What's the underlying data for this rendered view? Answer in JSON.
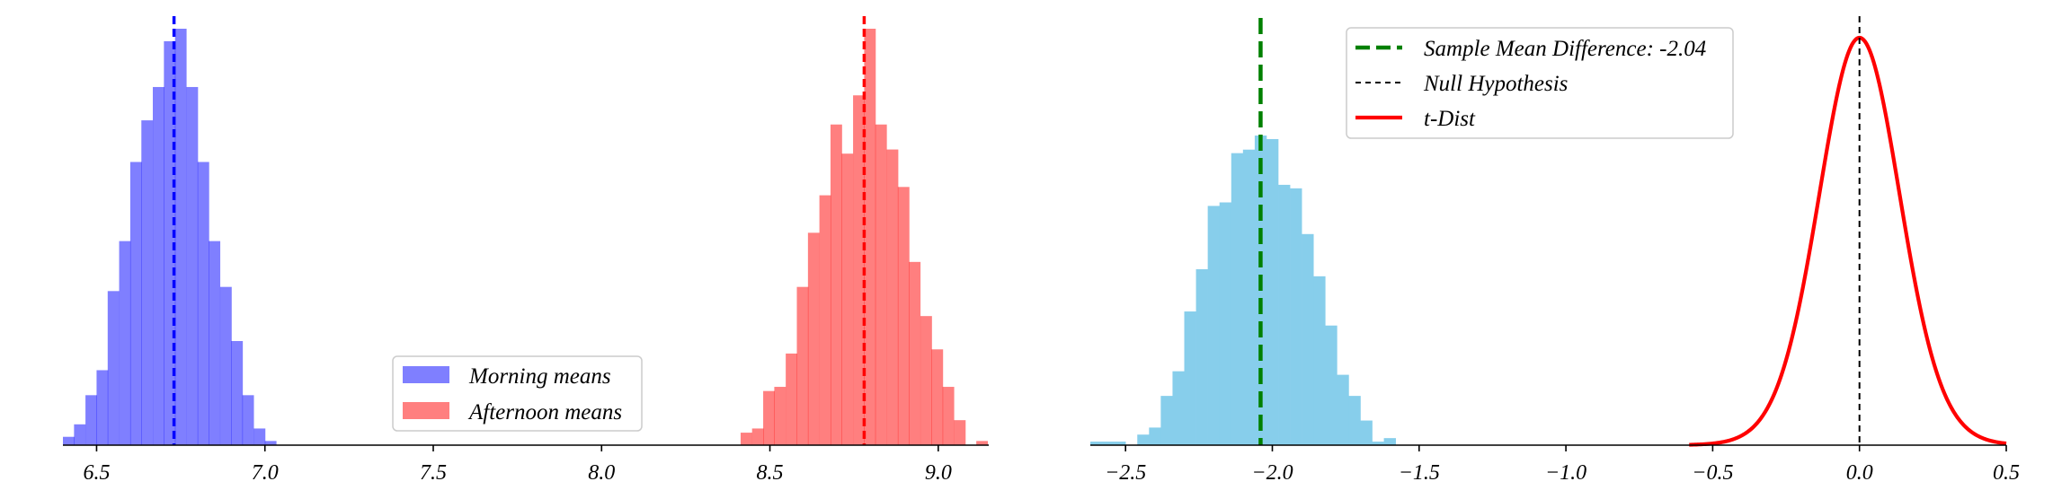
{
  "chart_data": [
    {
      "type": "histogram",
      "xlim": [
        6.4,
        9.15
      ],
      "xticks": [
        6.5,
        7.0,
        7.5,
        8.0,
        8.5,
        9.0
      ],
      "xtick_labels": [
        "6.5",
        "7.0",
        "7.5",
        "8.0",
        "8.5",
        "9.0"
      ],
      "y_axis_visible": false,
      "grid": false,
      "legend": {
        "placement": "lower-center"
      },
      "series": [
        {
          "name": "Morning means",
          "color": "#0000ff",
          "alpha": 0.5,
          "mean": 6.73,
          "bin_width": 0.0333,
          "bins": [
            {
              "x": 6.4,
              "count": 2
            },
            {
              "x": 6.433,
              "count": 5
            },
            {
              "x": 6.467,
              "count": 12
            },
            {
              "x": 6.5,
              "count": 18
            },
            {
              "x": 6.533,
              "count": 37
            },
            {
              "x": 6.567,
              "count": 49
            },
            {
              "x": 6.6,
              "count": 68
            },
            {
              "x": 6.633,
              "count": 78
            },
            {
              "x": 6.667,
              "count": 86
            },
            {
              "x": 6.7,
              "count": 97
            },
            {
              "x": 6.733,
              "count": 100
            },
            {
              "x": 6.767,
              "count": 86
            },
            {
              "x": 6.8,
              "count": 68
            },
            {
              "x": 6.833,
              "count": 49
            },
            {
              "x": 6.867,
              "count": 38
            },
            {
              "x": 6.9,
              "count": 25
            },
            {
              "x": 6.933,
              "count": 12
            },
            {
              "x": 6.967,
              "count": 4
            },
            {
              "x": 7.0,
              "count": 1
            }
          ]
        },
        {
          "name": "Afternoon means",
          "color": "#ff0000",
          "alpha": 0.5,
          "mean": 8.78,
          "bin_width": 0.0333,
          "bins": [
            {
              "x": 8.413,
              "count": 3
            },
            {
              "x": 8.447,
              "count": 4
            },
            {
              "x": 8.48,
              "count": 13
            },
            {
              "x": 8.513,
              "count": 14
            },
            {
              "x": 8.547,
              "count": 22
            },
            {
              "x": 8.58,
              "count": 38
            },
            {
              "x": 8.613,
              "count": 51
            },
            {
              "x": 8.647,
              "count": 60
            },
            {
              "x": 8.68,
              "count": 77
            },
            {
              "x": 8.713,
              "count": 70
            },
            {
              "x": 8.747,
              "count": 84
            },
            {
              "x": 8.78,
              "count": 100
            },
            {
              "x": 8.813,
              "count": 77
            },
            {
              "x": 8.847,
              "count": 71
            },
            {
              "x": 8.88,
              "count": 62
            },
            {
              "x": 8.913,
              "count": 44
            },
            {
              "x": 8.947,
              "count": 31
            },
            {
              "x": 8.98,
              "count": 23
            },
            {
              "x": 9.013,
              "count": 14
            },
            {
              "x": 9.047,
              "count": 6
            },
            {
              "x": 9.08,
              "count": 0
            },
            {
              "x": 9.113,
              "count": 1
            }
          ]
        }
      ]
    },
    {
      "type": "histogram",
      "xlim": [
        -2.62,
        0.5
      ],
      "xticks": [
        -2.5,
        -2.0,
        -1.5,
        -1.0,
        -0.5,
        0.0,
        0.5
      ],
      "xtick_labels": [
        "−2.5",
        "−2.0",
        "−1.5",
        "−1.0",
        "−0.5",
        "0.0",
        "0.5"
      ],
      "y_axis_visible": false,
      "grid": false,
      "legend": {
        "placement": "upper-center"
      },
      "series": [
        {
          "name": "",
          "color": "#87ceeb",
          "bin_width": 0.0397,
          "bins": [
            {
              "x": -2.62,
              "count": 1
            },
            {
              "x": -2.58,
              "count": 1
            },
            {
              "x": -2.54,
              "count": 1
            },
            {
              "x": -2.5,
              "count": 0
            },
            {
              "x": -2.46,
              "count": 3
            },
            {
              "x": -2.42,
              "count": 5
            },
            {
              "x": -2.38,
              "count": 14
            },
            {
              "x": -2.34,
              "count": 21
            },
            {
              "x": -2.3,
              "count": 38
            },
            {
              "x": -2.26,
              "count": 50
            },
            {
              "x": -2.22,
              "count": 68
            },
            {
              "x": -2.18,
              "count": 69
            },
            {
              "x": -2.14,
              "count": 83
            },
            {
              "x": -2.1,
              "count": 84
            },
            {
              "x": -2.06,
              "count": 88
            },
            {
              "x": -2.02,
              "count": 87
            },
            {
              "x": -1.98,
              "count": 74
            },
            {
              "x": -1.94,
              "count": 73
            },
            {
              "x": -1.9,
              "count": 60
            },
            {
              "x": -1.86,
              "count": 48
            },
            {
              "x": -1.82,
              "count": 34
            },
            {
              "x": -1.78,
              "count": 20
            },
            {
              "x": -1.74,
              "count": 14
            },
            {
              "x": -1.7,
              "count": 7
            },
            {
              "x": -1.66,
              "count": 1
            },
            {
              "x": -1.62,
              "count": 2
            }
          ]
        }
      ],
      "sample_mean_difference": {
        "label": "Sample Mean Difference: -2.04",
        "value": -2.04,
        "color": "#008000"
      },
      "null_hypothesis": {
        "label": "Null Hypothesis",
        "value": 0.0,
        "color": "#000000"
      },
      "t_dist": {
        "label": "t-Dist",
        "color": "#ff0000",
        "center": 0.0,
        "scale": 0.14,
        "df": 30,
        "x_range": [
          -0.58,
          0.5
        ],
        "peak_relative": 1.0
      }
    }
  ]
}
